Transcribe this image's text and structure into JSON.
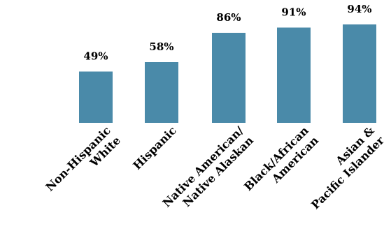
{
  "chart_data": {
    "type": "bar",
    "categories": [
      [
        "Non-Hispanic",
        "White"
      ],
      [
        "Hispanic"
      ],
      [
        "Native American/",
        "Native Alaskan"
      ],
      [
        "Black/African",
        "American"
      ],
      [
        "Asian &",
        "Pacific Islander"
      ]
    ],
    "values": [
      49,
      58,
      86,
      91,
      94
    ],
    "data_labels": [
      "49%",
      "58%",
      "86%",
      "91%",
      "94%"
    ],
    "ylim": [
      0,
      100
    ],
    "bar_color": "#4a8aa9",
    "grid": false,
    "legend": "none"
  }
}
